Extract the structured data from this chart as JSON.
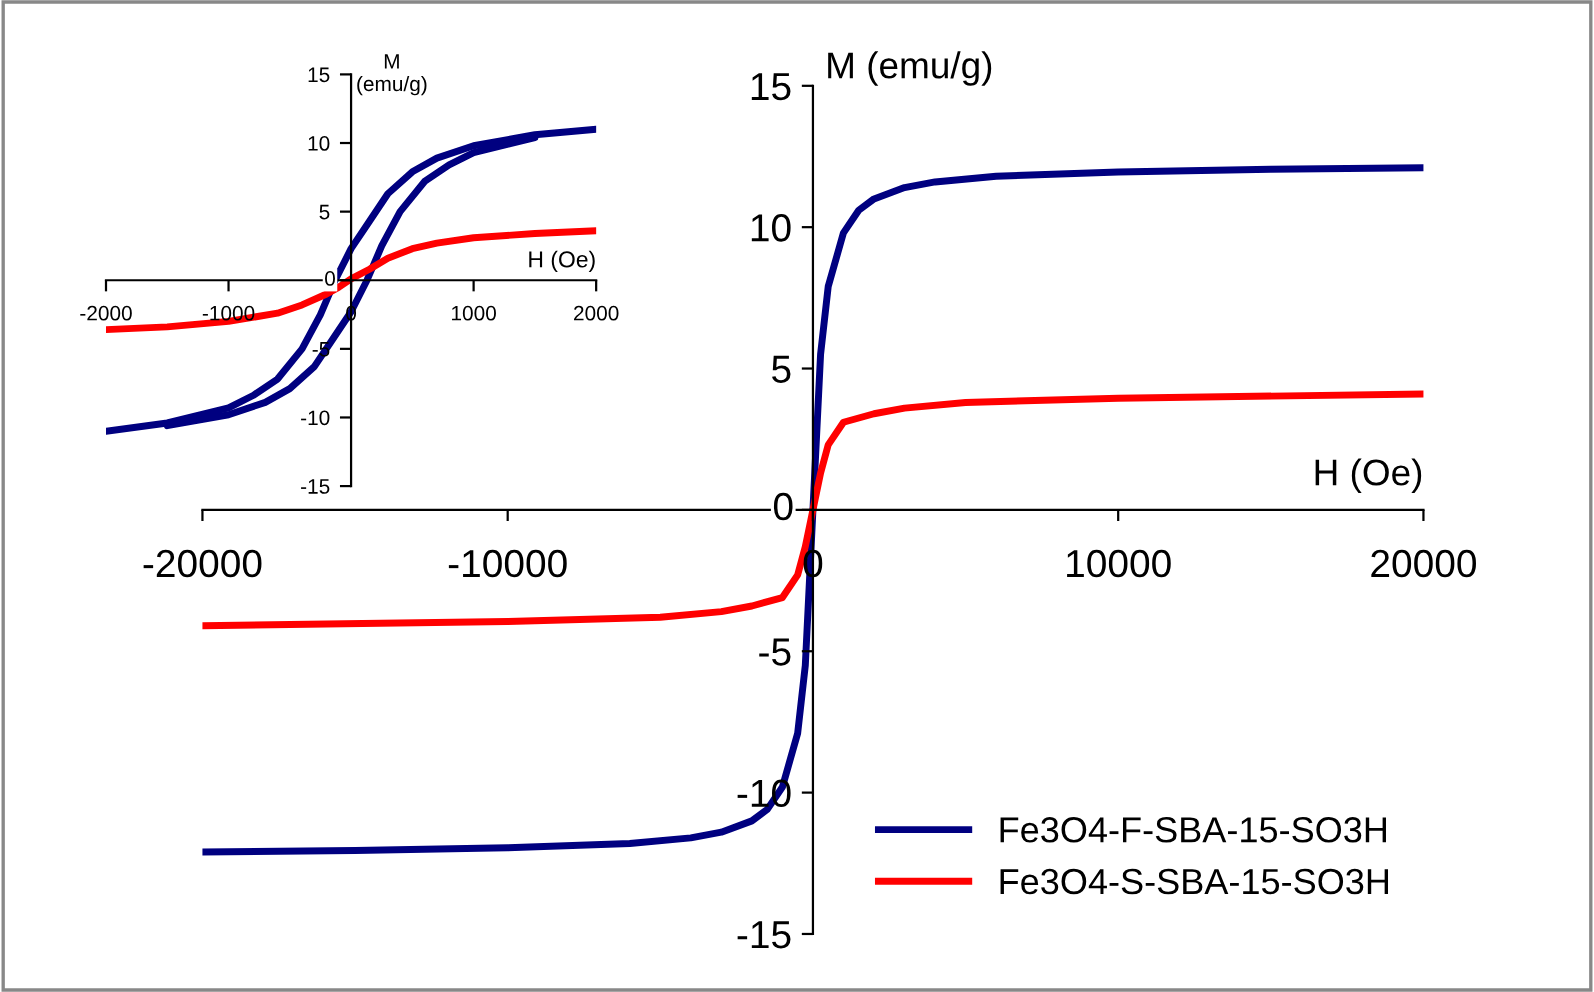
{
  "chart_data": [
    {
      "type": "line",
      "xlabel": "H (Oe)",
      "ylabel": "M (emu/g)",
      "xlim": [
        -20000,
        20000
      ],
      "ylim": [
        -15,
        15
      ],
      "xticks": [
        -20000,
        -10000,
        0,
        10000,
        20000
      ],
      "yticks": [
        -15,
        -10,
        -5,
        0,
        5,
        10,
        15
      ],
      "grid": false,
      "legend": "bottom right",
      "marker": "none",
      "line_style": "solid",
      "series": [
        {
          "name": "Fe3O4-F-SBA-15-SO3H",
          "color": "#000080",
          "x": [
            -20000,
            -15000,
            -10000,
            -6000,
            -4000,
            -3000,
            -2000,
            -1500,
            -1000,
            -500,
            -250,
            0,
            250,
            500,
            1000,
            1500,
            2000,
            3000,
            4000,
            6000,
            10000,
            15000,
            20000
          ],
          "values": [
            -12.1,
            -12.05,
            -11.95,
            -11.8,
            -11.6,
            -11.4,
            -11.0,
            -10.6,
            -9.8,
            -7.9,
            -5.5,
            0,
            5.5,
            7.9,
            9.8,
            10.6,
            11.0,
            11.4,
            11.6,
            11.8,
            11.95,
            12.05,
            12.1
          ]
        },
        {
          "name": "Fe3O4-S-SBA-15-SO3H",
          "color": "#ff0000",
          "x": [
            -20000,
            -10000,
            -5000,
            -3000,
            -2000,
            -1000,
            -500,
            -250,
            0,
            250,
            500,
            1000,
            2000,
            3000,
            5000,
            10000,
            20000
          ],
          "values": [
            -4.1,
            -3.95,
            -3.8,
            -3.6,
            -3.4,
            -3.1,
            -2.3,
            -1.3,
            0,
            1.3,
            2.3,
            3.1,
            3.4,
            3.6,
            3.8,
            3.95,
            4.1
          ]
        }
      ]
    },
    {
      "type": "line",
      "xlabel": "H (Oe)",
      "ylabel": "M\n(emu/g)",
      "xlim": [
        -2000,
        2000
      ],
      "ylim": [
        -15,
        15
      ],
      "xticks": [
        -2000,
        -1000,
        0,
        1000,
        2000
      ],
      "yticks": [
        -15,
        -10,
        -5,
        0,
        5,
        10,
        15
      ],
      "grid": false,
      "legend": false,
      "marker": "none",
      "line_style": "solid",
      "series": [
        {
          "color": "#000080",
          "x": [
            -2000,
            -1500,
            -1000,
            -800,
            -600,
            -400,
            -250,
            -130,
            0,
            150,
            300,
            500,
            700,
            1000,
            1500,
            2000
          ],
          "values": [
            -11,
            -10.4,
            -9.3,
            -8.4,
            -7.2,
            -5,
            -2.5,
            0,
            2.3,
            4.3,
            6.3,
            7.9,
            8.9,
            9.8,
            10.6,
            11
          ]
        },
        {
          "color": "#000080",
          "x": [
            -1500,
            -1000,
            -700,
            -500,
            -300,
            -150,
            0,
            130,
            250,
            400,
            600,
            800,
            1000,
            1500
          ],
          "values": [
            -10.6,
            -9.8,
            -8.9,
            -7.9,
            -6.3,
            -4.3,
            -2.3,
            0,
            2.5,
            5,
            7.2,
            8.4,
            9.3,
            10.4
          ]
        },
        {
          "color": "#ff0000",
          "x": [
            -2000,
            -1500,
            -1000,
            -600,
            -400,
            -200,
            -100,
            0,
            150,
            300,
            500,
            700,
            1000,
            1500,
            2000
          ],
          "values": [
            -3.6,
            -3.4,
            -3.0,
            -2.4,
            -1.8,
            -1.0,
            -0.5,
            0.1,
            0.8,
            1.6,
            2.3,
            2.7,
            3.1,
            3.4,
            3.6
          ]
        }
      ]
    }
  ]
}
